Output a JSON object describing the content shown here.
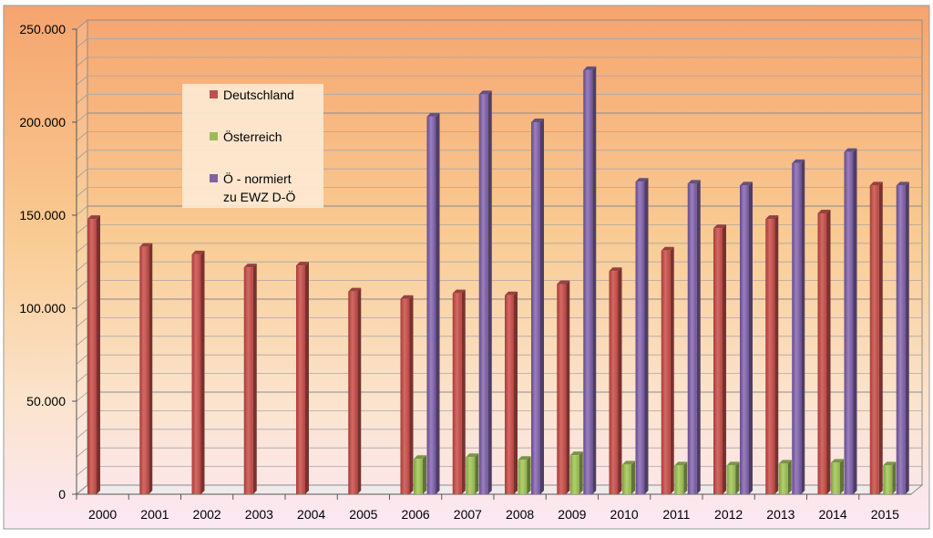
{
  "chart_data": {
    "type": "bar",
    "categories": [
      "2000",
      "2001",
      "2002",
      "2003",
      "2004",
      "2005",
      "2006",
      "2007",
      "2008",
      "2009",
      "2010",
      "2011",
      "2012",
      "2013",
      "2014",
      "2015"
    ],
    "series": [
      {
        "name": "Deutschland",
        "color": "#c0504d",
        "values": [
          148000,
          133000,
          129000,
          122000,
          123000,
          109000,
          105000,
          108000,
          107000,
          113000,
          120000,
          131000,
          143000,
          148000,
          151000,
          166000
        ]
      },
      {
        "name": "Österreich",
        "color": "#9bbb59",
        "values": [
          null,
          null,
          null,
          null,
          null,
          null,
          19000,
          20000,
          18500,
          21000,
          16000,
          15500,
          15500,
          16500,
          17000,
          15500
        ]
      },
      {
        "name": "Ö - normiert\nzu EWZ D-Ö",
        "color": "#8064a2",
        "values": [
          null,
          null,
          null,
          null,
          null,
          null,
          203000,
          215000,
          200000,
          228000,
          168000,
          167000,
          166000,
          178000,
          184000,
          166000
        ]
      }
    ],
    "y_ticks": [
      "0",
      "50.000",
      "100.000",
      "150.000",
      "200.000",
      "250.000"
    ],
    "ylim": [
      0,
      250000
    ],
    "grid": true,
    "legend_position": "top-left inside plot"
  }
}
